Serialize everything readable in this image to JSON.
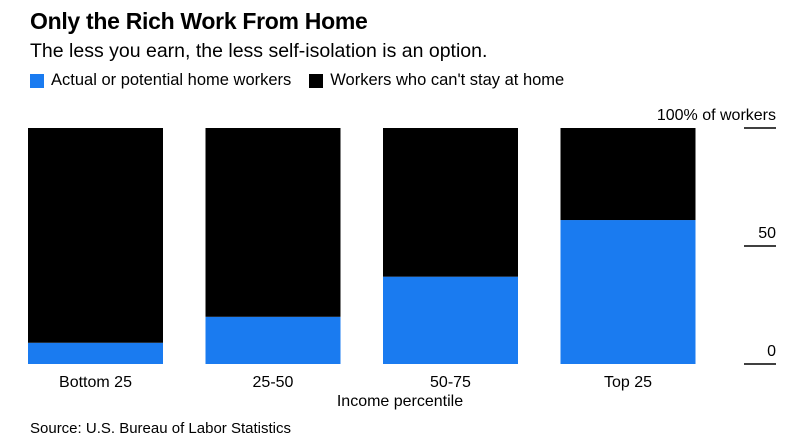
{
  "chart_data": {
    "type": "bar",
    "stacked": true,
    "title": "Only the Rich Work From Home",
    "subtitle": "The less you earn, the less self-isolation is an option.",
    "xlabel": "Income percentile",
    "ylabel": "",
    "categories": [
      "Bottom 25",
      "25-50",
      "50-75",
      "Top 25"
    ],
    "series": [
      {
        "name": "Actual or potential home workers",
        "color": "#1a7bf0",
        "values": [
          9,
          20,
          37,
          61
        ]
      },
      {
        "name": "Workers who can't stay at home",
        "color": "#000000",
        "values": [
          91,
          80,
          63,
          39
        ]
      }
    ],
    "ylim": [
      0,
      100
    ],
    "yticks": [
      {
        "value": 100,
        "label": "100% of workers"
      },
      {
        "value": 50,
        "label": "50"
      },
      {
        "value": 0,
        "label": "0"
      }
    ],
    "grid": false,
    "legend_position": "top-left",
    "source": "Source: U.S. Bureau of Labor Statistics"
  }
}
